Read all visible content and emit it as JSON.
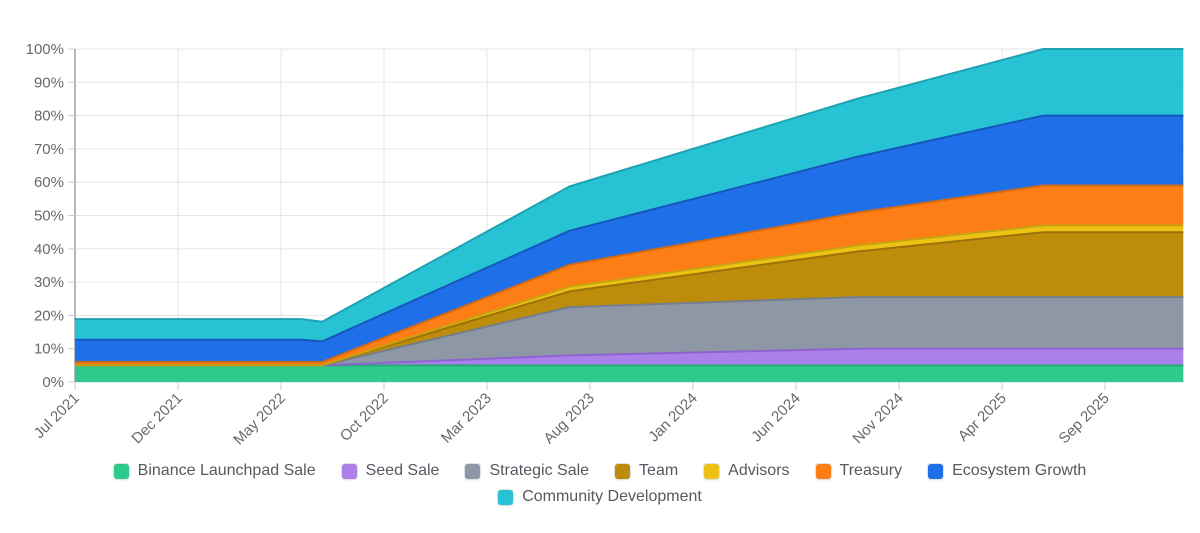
{
  "chart_data": {
    "type": "area",
    "stacked": true,
    "title": "",
    "unit": "%",
    "ylim": [
      0,
      100
    ],
    "grid": true,
    "legend_position": "bottom",
    "x_axis": {
      "tick_labels": [
        "Jul 2021",
        "Dec 2021",
        "May 2022",
        "Oct 2022",
        "Mar 2023",
        "Aug 2023",
        "Jan 2024",
        "Jun 2024",
        "Nov 2024",
        "Apr 2025",
        "Sep 2025"
      ],
      "tick_months": [
        0,
        5,
        10,
        15,
        20,
        25,
        30,
        35,
        40,
        45,
        50
      ]
    },
    "y_axis": {
      "tick_labels": [
        "0%",
        "10%",
        "20%",
        "30%",
        "40%",
        "50%",
        "60%",
        "70%",
        "80%",
        "90%",
        "100%"
      ],
      "tick_values": [
        0,
        10,
        20,
        30,
        40,
        50,
        60,
        70,
        80,
        90,
        100
      ]
    },
    "x_months": [
      0,
      11,
      12,
      24,
      38,
      47,
      53.8
    ],
    "series": [
      {
        "name": "Binance Launchpad Sale",
        "color": "#2dca8c",
        "line_color": "#26a974",
        "final_pct": 5,
        "values": [
          5,
          5,
          5,
          5,
          5,
          5,
          5
        ]
      },
      {
        "name": "Seed Sale",
        "color": "#ab80e8",
        "line_color": "#8f63cf",
        "final_pct": 5,
        "values": [
          0,
          0,
          0,
          3.0,
          5,
          5,
          5
        ]
      },
      {
        "name": "Strategic Sale",
        "color": "#8d97a6",
        "line_color": "#747e8c",
        "final_pct": 15.5,
        "values": [
          0,
          0,
          0,
          14.5,
          15.5,
          15.5,
          15.5
        ]
      },
      {
        "name": "Team",
        "color": "#bd8c0a",
        "line_color": "#9b7208",
        "final_pct": 19.5,
        "values": [
          0,
          0,
          0,
          4.7,
          13.7,
          19.5,
          19.5
        ]
      },
      {
        "name": "Advisors",
        "color": "#ecc315",
        "line_color": "#c7a310",
        "final_pct": 2,
        "values": [
          0,
          0,
          0,
          1.4,
          1.8,
          2,
          2
        ]
      },
      {
        "name": "Treasury",
        "color": "#fd7e14",
        "line_color": "#d5690f",
        "final_pct": 12,
        "values": [
          1,
          1,
          1,
          6.6,
          9.9,
          12,
          12
        ]
      },
      {
        "name": "Ecosystem Growth",
        "color": "#1e6fe8",
        "line_color": "#1757bd",
        "final_pct": 21,
        "values": [
          6.7,
          6.7,
          6.2,
          10.2,
          16.8,
          21,
          21
        ]
      },
      {
        "name": "Community Development",
        "color": "#27c3d4",
        "line_color": "#1da2b1",
        "final_pct": 20,
        "values": [
          6.2,
          6.2,
          5.9,
          13.3,
          17.4,
          20,
          20
        ]
      }
    ],
    "colors": {
      "grid_line": "#e6e6e6",
      "axis_line": "#9aa0a6",
      "bottom_axis_line": "#d6d9dc",
      "tick_mark": "#cccccc",
      "axis_text": "#66696d",
      "legend_text": "#545a60",
      "background": "#ffffff"
    }
  }
}
